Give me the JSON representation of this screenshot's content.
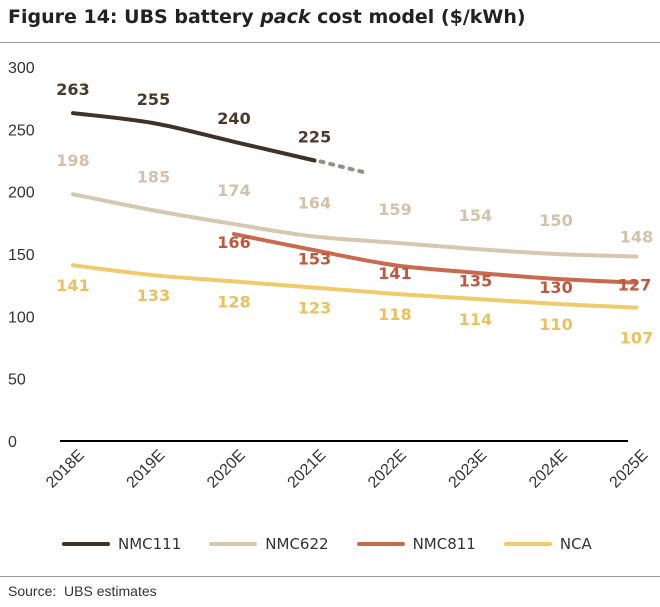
{
  "figure": {
    "title_prefix": "Figure 14: UBS battery ",
    "title_emph": "pack",
    "title_suffix": " cost model ($/kWh)",
    "source": "Source:  UBS estimates"
  },
  "chart_data": {
    "type": "line",
    "title": "Figure 14: UBS battery pack cost model ($/kWh)",
    "categories": [
      "2018E",
      "2019E",
      "2020E",
      "2021E",
      "2022E",
      "2023E",
      "2024E",
      "2025E"
    ],
    "ylim": [
      0,
      300
    ],
    "yticks": [
      0,
      50,
      100,
      150,
      200,
      250,
      300
    ],
    "grid": false,
    "legend_position": "bottom",
    "series": [
      {
        "name": "NMC111",
        "color": "#3f3327",
        "values": [
          263,
          255,
          240,
          225,
          null,
          null,
          null,
          null
        ],
        "dotted_extension_to": 215
      },
      {
        "name": "NMC622",
        "color": "#d7c7ae",
        "values": [
          198,
          185,
          174,
          164,
          159,
          154,
          150,
          148
        ]
      },
      {
        "name": "NMC811",
        "color": "#c9694e",
        "values": [
          null,
          null,
          166,
          153,
          141,
          135,
          130,
          127
        ]
      },
      {
        "name": "NCA",
        "color": "#efcb6b",
        "values": [
          141,
          133,
          128,
          123,
          118,
          114,
          110,
          107
        ]
      }
    ]
  }
}
